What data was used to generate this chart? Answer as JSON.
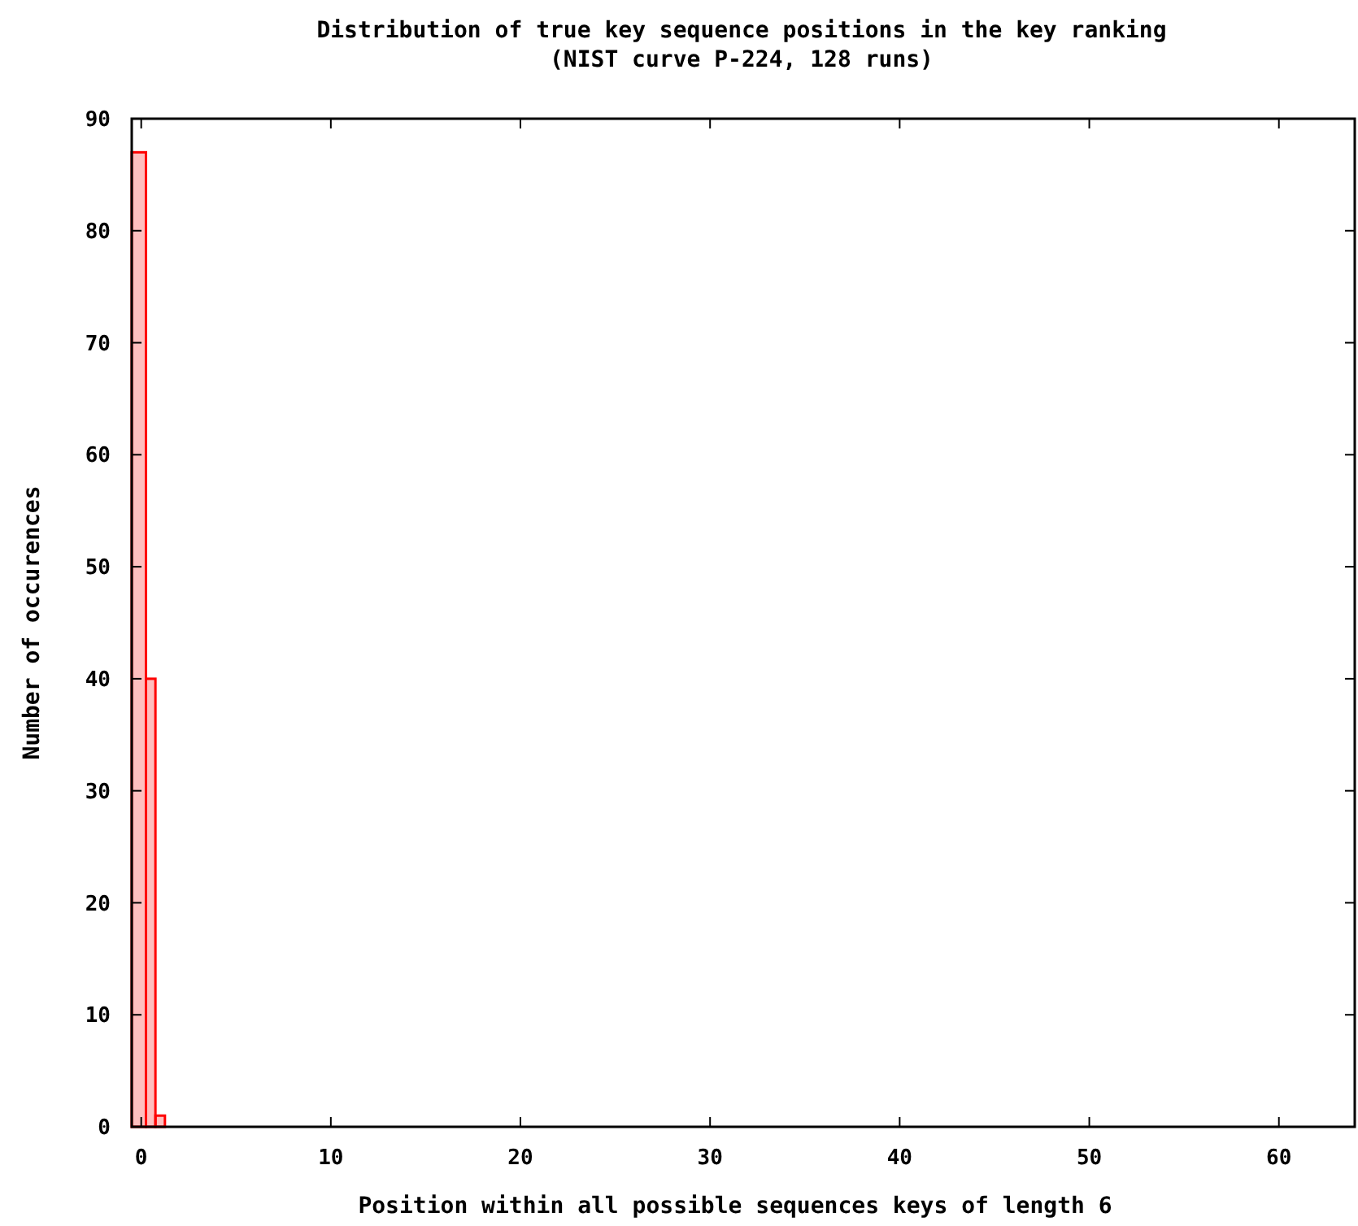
{
  "chart_data": {
    "type": "histogram",
    "title": "Distribution of true key sequence positions in the key ranking",
    "subtitle": "(NIST curve P-224, 128 runs)",
    "xlabel": "Position within all possible sequences keys of length 6",
    "ylabel": "Number of occurences",
    "bins": [
      -0.5,
      0.25,
      0.75,
      1.25
    ],
    "values": [
      87,
      40,
      1
    ],
    "color": "#ff0000",
    "xlim": [
      -0.5,
      64
    ],
    "xticks": [
      0,
      10,
      20,
      30,
      40,
      50,
      60
    ],
    "ylim": [
      0,
      90
    ],
    "yticks": [
      0,
      10,
      20,
      30,
      40,
      50,
      60,
      70,
      80,
      90
    ],
    "grid": false
  }
}
